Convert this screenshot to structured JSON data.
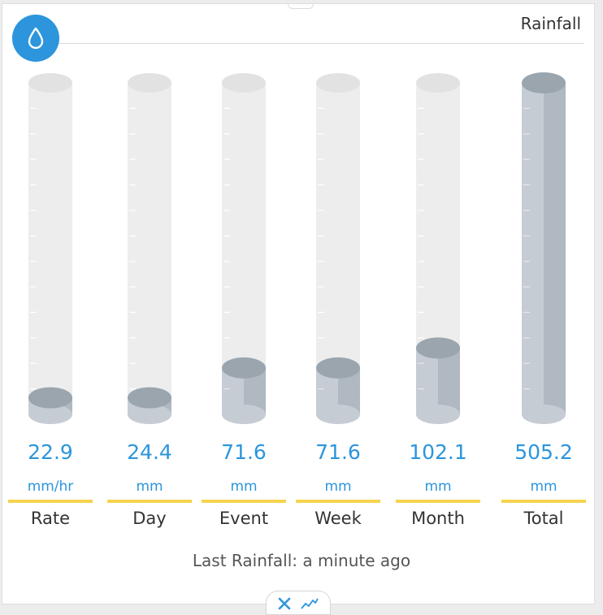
{
  "title": "Rainfall",
  "icons": {
    "badge": "water-drop-icon",
    "close": "close-icon",
    "chart": "line-chart-icon"
  },
  "colors": {
    "accent": "#2c95dc",
    "underline": "#f6d34f",
    "tube_empty": "#ededed",
    "fill_front": "#c6ccd3",
    "fill_shadow": "#b0b8c1",
    "fill_top": "#9aa5ae"
  },
  "gauges": [
    {
      "id": "rate",
      "value": "22.9",
      "unit": "mm/hr",
      "label": "Rate",
      "fill_fraction": 0.05
    },
    {
      "id": "day",
      "value": "24.4",
      "unit": "mm",
      "label": "Day",
      "fill_fraction": 0.05
    },
    {
      "id": "event",
      "value": "71.6",
      "unit": "mm",
      "label": "Event",
      "fill_fraction": 0.14
    },
    {
      "id": "week",
      "value": "71.6",
      "unit": "mm",
      "label": "Week",
      "fill_fraction": 0.14
    },
    {
      "id": "month",
      "value": "102.1",
      "unit": "mm",
      "label": "Month",
      "fill_fraction": 0.2
    },
    {
      "id": "total",
      "value": "505.2",
      "unit": "mm",
      "label": "Total",
      "fill_fraction": 1.0
    }
  ],
  "last_rainfall": "Last Rainfall: a minute ago"
}
